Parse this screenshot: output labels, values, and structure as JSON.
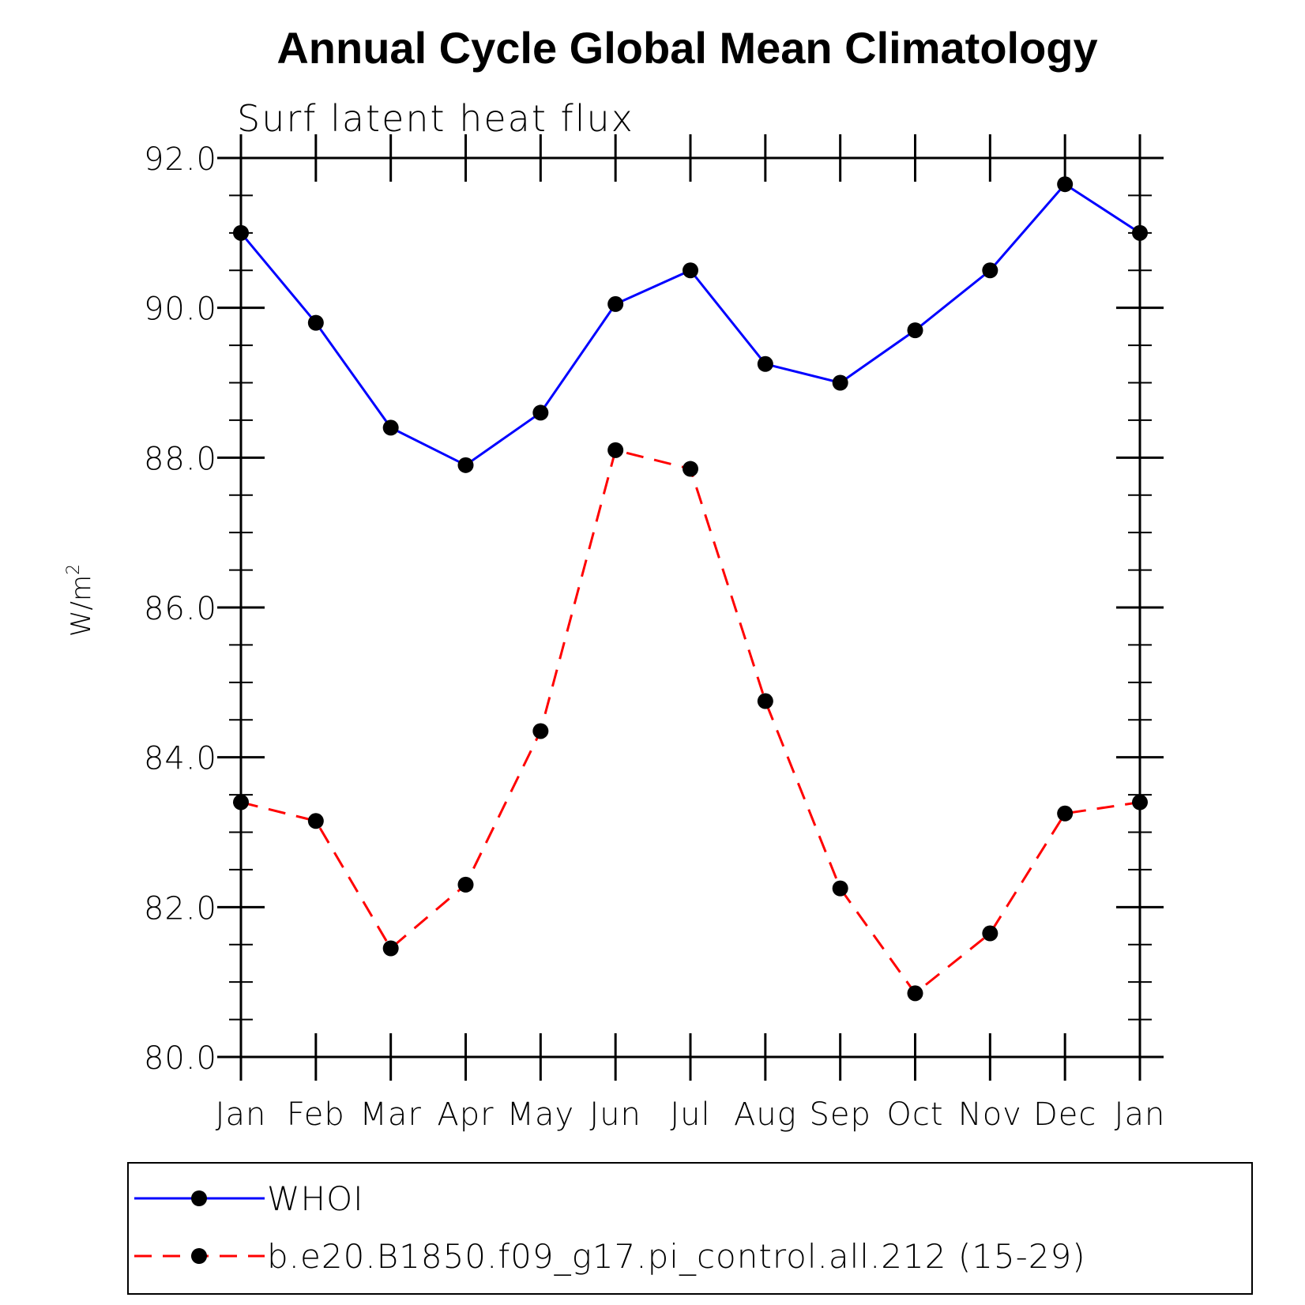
{
  "chart_data": {
    "type": "line",
    "title": "Annual Cycle Global Mean Climatology",
    "subtitle": "Surf latent heat flux",
    "ylabel": "W/m",
    "ylabel_superscript": "2",
    "ylim": [
      80,
      92
    ],
    "y_ticks": [
      "80.0",
      "82.0",
      "84.0",
      "86.0",
      "88.0",
      "90.0",
      "92.0"
    ],
    "categories": [
      "Jan",
      "Feb",
      "Mar",
      "Apr",
      "May",
      "Jun",
      "Jul",
      "Aug",
      "Sep",
      "Oct",
      "Nov",
      "Dec",
      "Jan"
    ],
    "grid": false,
    "legend_position": "bottom",
    "series": [
      {
        "name": "WHOI",
        "color": "#0000ff",
        "style": "solid",
        "marker": "filled-circle",
        "values": [
          91.0,
          89.8,
          88.4,
          87.9,
          88.6,
          90.05,
          90.5,
          89.25,
          89.0,
          89.7,
          90.5,
          91.65,
          91.0
        ]
      },
      {
        "name": "b.e20.B1850.f09_g17.pi_control.all.212 (15-29)",
        "color": "#ff0000",
        "style": "dashed",
        "marker": "filled-circle",
        "values": [
          83.4,
          83.15,
          81.45,
          82.3,
          84.35,
          88.1,
          87.85,
          84.75,
          82.25,
          80.85,
          81.65,
          83.25,
          83.4
        ]
      }
    ]
  }
}
